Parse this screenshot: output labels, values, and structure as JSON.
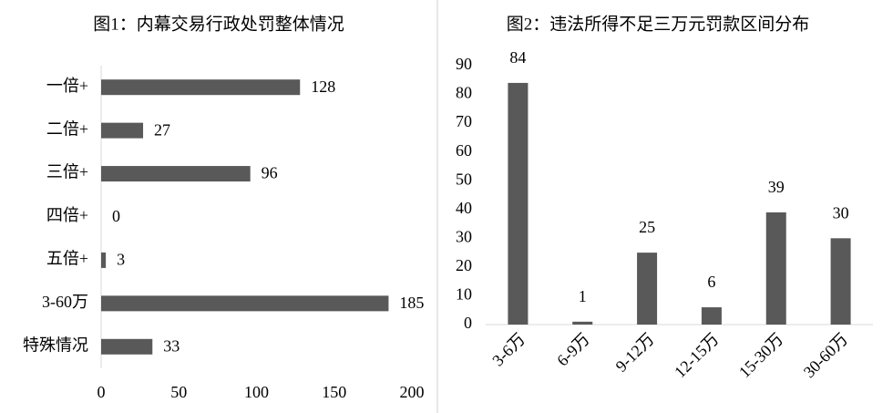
{
  "chart_data": [
    {
      "type": "barh",
      "title": "图1：内幕交易行政处罚整体情况",
      "categories": [
        "一倍+",
        "二倍+",
        "三倍+",
        "四倍+",
        "五倍+",
        "3-60万",
        "特殊情况"
      ],
      "values": [
        128,
        27,
        96,
        0,
        3,
        185,
        33
      ],
      "color": "#595959",
      "xlim": [
        0,
        200
      ],
      "xticks": [
        0,
        50,
        100,
        150,
        200
      ]
    },
    {
      "type": "bar",
      "title": "图2：违法所得不足三万元罚款区间分布",
      "categories": [
        "3-6万",
        "6-9万",
        "9-12万",
        "12-15万",
        "15-30万",
        "30-60万"
      ],
      "values": [
        84,
        1,
        25,
        6,
        39,
        30
      ],
      "color": "#595959",
      "ylim": [
        0,
        90
      ],
      "yticks": [
        0,
        10,
        20,
        30,
        40,
        50,
        60,
        70,
        80,
        90
      ]
    }
  ]
}
